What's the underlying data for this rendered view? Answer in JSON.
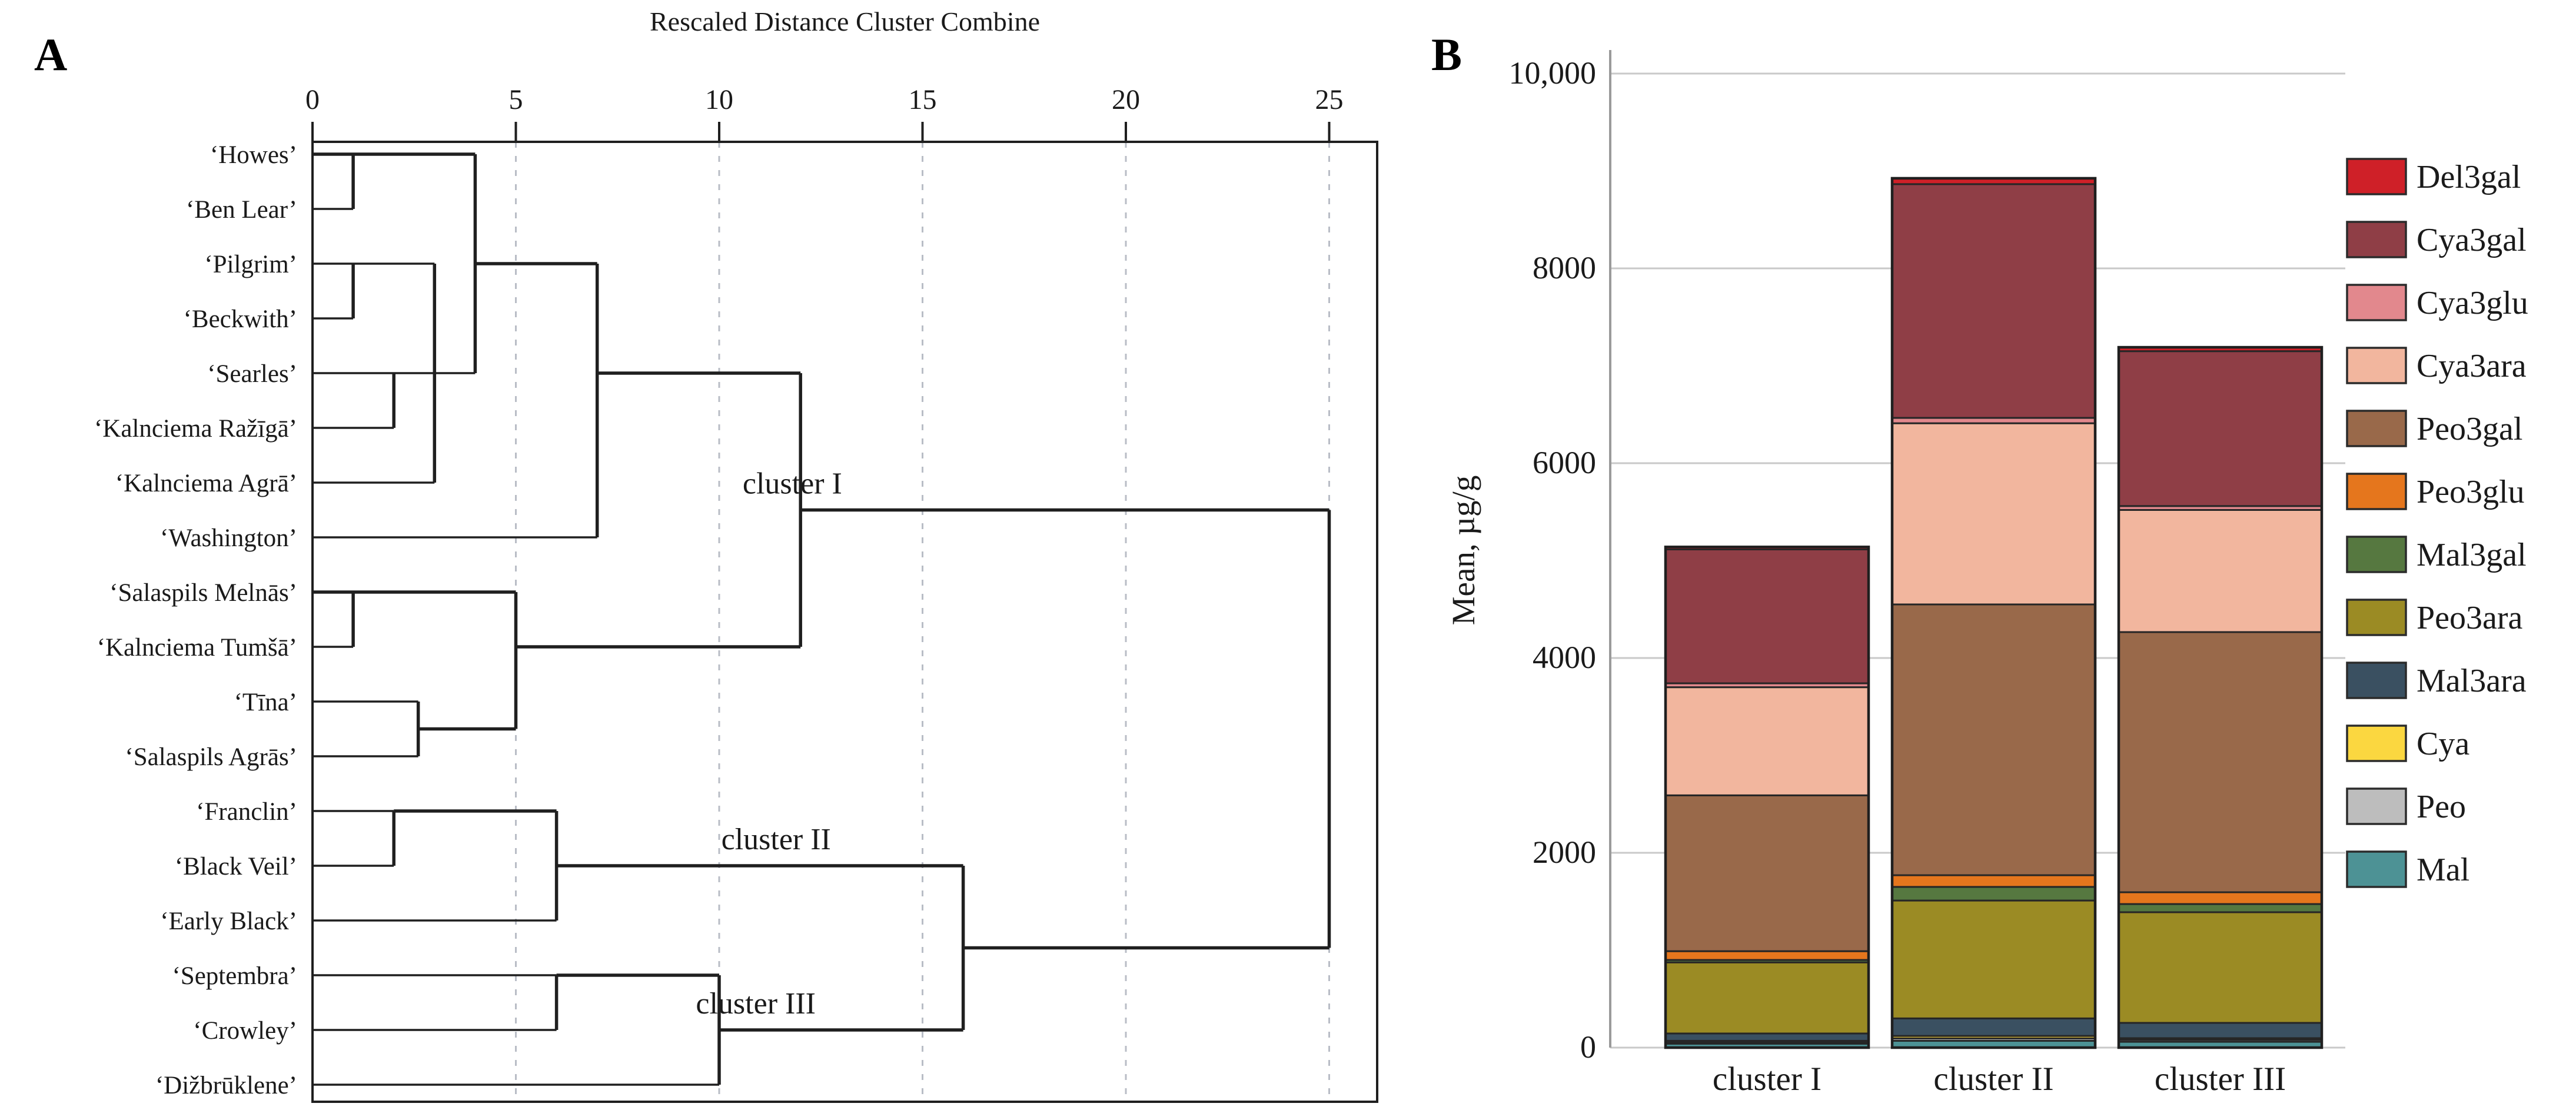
{
  "panels": {
    "a_label": "A",
    "b_label": "B"
  },
  "chart_data": [
    {
      "type": "dendrogram",
      "orientation": "horizontal",
      "title": "Rescaled Distance Cluster Combine",
      "xlim": [
        0,
        25
      ],
      "ticks": [
        "0",
        "5",
        "10",
        "15",
        "20",
        "25"
      ],
      "tick_values": [
        0,
        5,
        10,
        15,
        20,
        25
      ],
      "grid": "dashed-vertical",
      "leaves": [
        "‘Howes’",
        "‘Ben Lear’",
        "‘Pilgrim’",
        "‘Beckwith’",
        "‘Searles’",
        "‘Kalnciema Ražīgā’",
        "‘Kalnciema Agrā’",
        "‘Washington’",
        "‘Salaspils Melnās’",
        "‘Kalnciema Tumšā’",
        "‘Tīna’",
        "‘Salaspils Agrās’",
        "‘Franclin’",
        "‘Black Veil’",
        "‘Early Black’",
        "‘Septembra’",
        "‘Crowley’",
        "‘Dižbrūklene’"
      ],
      "merges": [
        [
          "Howes",
          "Ben Lear",
          1
        ],
        [
          "Pilgrim",
          "Beckwith",
          1
        ],
        [
          "Searles",
          "Kalnciema Ražīgā",
          2
        ],
        [
          "Pilgrim group",
          "Searles group + Kalnciema Agrā",
          3
        ],
        [
          "Howes group",
          "Pilgrim/Searles group",
          4
        ],
        [
          "Salaspils Melnās",
          "Kalnciema Tumšā",
          1
        ],
        [
          "Tīna",
          "Salaspils Agrās",
          2.6
        ],
        [
          "Salaspils Melnās group",
          "Tīna group",
          5
        ],
        [
          "rows 1–7 group",
          "Washington",
          7
        ],
        [
          "rows 1–8 group",
          "rows 9–12 group",
          12
        ],
        [
          "Franclin",
          "Black Veil",
          2
        ],
        [
          "Franclin group",
          "Early Black",
          6
        ],
        [
          "Septembra",
          "Crowley",
          6
        ],
        [
          "Septembra group",
          "Dižbrūklene",
          10
        ],
        [
          "cluster II",
          "cluster III",
          16
        ],
        [
          "cluster I",
          "cluster II + III",
          25
        ]
      ],
      "segments": {
        "h": [
          [
            1,
            0,
            4,
            1
          ],
          [
            2,
            0,
            1,
            0
          ],
          [
            3,
            0,
            3,
            0
          ],
          [
            4,
            0,
            1,
            0
          ],
          [
            5,
            0,
            4,
            0
          ],
          [
            6,
            0,
            2,
            0
          ],
          [
            7,
            0,
            3,
            0
          ],
          [
            8,
            0,
            7,
            0
          ],
          [
            9,
            0,
            5,
            1
          ],
          [
            10,
            0,
            1,
            0
          ],
          [
            11,
            0,
            2.6,
            0
          ],
          [
            12,
            0,
            2.6,
            0
          ],
          [
            13,
            0,
            2,
            0
          ],
          [
            14,
            0,
            2,
            0
          ],
          [
            15,
            0,
            6,
            0
          ],
          [
            16,
            0,
            6,
            0
          ],
          [
            17,
            0,
            6,
            0
          ],
          [
            18,
            0,
            10,
            0
          ],
          [
            3,
            4,
            7,
            1
          ],
          [
            5,
            7,
            12,
            1
          ],
          [
            11.5,
            2.6,
            5,
            1
          ],
          [
            10,
            5,
            12,
            1
          ],
          [
            7.5,
            12,
            25,
            1
          ],
          [
            13,
            2,
            6,
            1
          ],
          [
            14,
            6,
            16,
            1
          ],
          [
            16,
            6,
            10,
            1
          ],
          [
            17,
            10,
            16,
            1
          ],
          [
            15.5,
            16,
            25,
            1
          ]
        ],
        "v": [
          [
            1,
            1,
            2,
            1
          ],
          [
            1,
            3,
            4,
            1
          ],
          [
            2,
            5,
            6,
            1
          ],
          [
            3,
            3,
            7,
            1
          ],
          [
            4,
            1,
            5,
            1
          ],
          [
            7,
            3,
            8,
            1
          ],
          [
            1,
            9,
            10,
            1
          ],
          [
            2.6,
            11,
            12,
            1
          ],
          [
            5,
            9,
            11.5,
            1
          ],
          [
            12,
            5,
            10,
            1
          ],
          [
            2,
            13,
            14,
            1
          ],
          [
            6,
            13,
            15,
            1
          ],
          [
            6,
            16,
            17,
            1
          ],
          [
            10,
            16,
            18,
            1
          ],
          [
            16,
            14,
            17,
            1
          ],
          [
            25,
            7.5,
            15.5,
            1
          ]
        ]
      },
      "cluster_labels": [
        {
          "text": "cluster I",
          "u": 11.8,
          "r": 7.5
        },
        {
          "text": "cluster II",
          "u": 11.4,
          "r": 14
        },
        {
          "text": "cluster III",
          "u": 10.9,
          "r": 17
        }
      ]
    },
    {
      "type": "stacked_bar",
      "categories": [
        "cluster I",
        "cluster II",
        "cluster III"
      ],
      "ylabel": "Mean, µg/g",
      "ylim": [
        0,
        10000
      ],
      "yticks": [
        "0",
        "2000",
        "4000",
        "6000",
        "8000",
        "10,000"
      ],
      "ytick_values": [
        0,
        2000,
        4000,
        6000,
        8000,
        10000
      ],
      "grid": "horizontal",
      "legend_position": "right",
      "series": [
        {
          "name": "Mal",
          "color": "#4d9295",
          "values": [
            40,
            70,
            60
          ]
        },
        {
          "name": "Peo",
          "color": "#bdbdbd",
          "values": [
            15,
            25,
            20
          ]
        },
        {
          "name": "Cya",
          "color": "#fbd740",
          "values": [
            15,
            25,
            17
          ]
        },
        {
          "name": "Mal3ara",
          "color": "#3a5061",
          "values": [
            75,
            180,
            157
          ]
        },
        {
          "name": "Peo3ara",
          "color": "#9b8b24",
          "values": [
            730,
            1210,
            1136
          ]
        },
        {
          "name": "Mal3gal",
          "color": "#567840",
          "values": [
            25,
            140,
            84
          ]
        },
        {
          "name": "Peo3glu",
          "color": "#e5761d",
          "values": [
            90,
            120,
            121
          ]
        },
        {
          "name": "Peo3gal",
          "color": "#99694a",
          "values": [
            1600,
            2780,
            2671
          ]
        },
        {
          "name": "Cya3ara",
          "color": "#f2b69e",
          "values": [
            1110,
            1860,
            1254
          ]
        },
        {
          "name": "Cya3glu",
          "color": "#e2888d",
          "values": [
            40,
            55,
            40
          ]
        },
        {
          "name": "Cya3gal",
          "color": "#8f3e46",
          "values": [
            1375,
            2400,
            1590
          ]
        },
        {
          "name": "Del3gal",
          "color": "#cf2028",
          "values": [
            25,
            60,
            40
          ]
        }
      ],
      "totals": [
        5140,
        8925,
        7190
      ],
      "legend_top_to_bottom": [
        "Del3gal",
        "Cya3gal",
        "Cya3glu",
        "Cya3ara",
        "Peo3gal",
        "Peo3glu",
        "Mal3gal",
        "Peo3ara",
        "Mal3ara",
        "Cya",
        "Peo",
        "Mal"
      ]
    }
  ]
}
